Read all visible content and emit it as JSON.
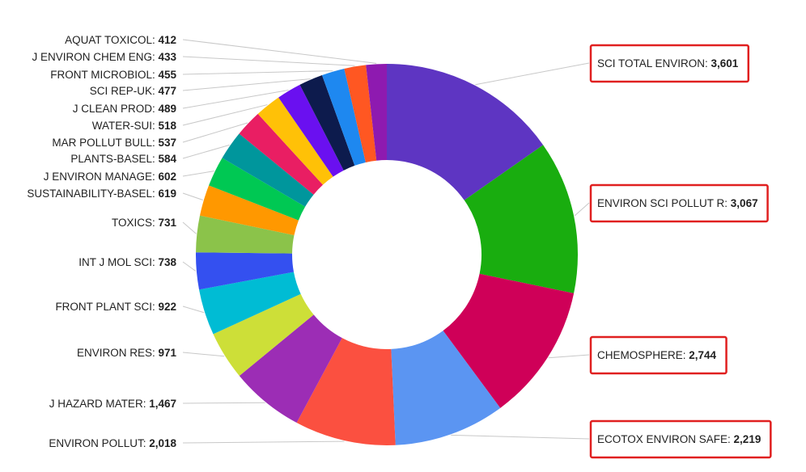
{
  "chart_data": {
    "type": "pie",
    "donut": true,
    "title": "",
    "slices": [
      {
        "label": "SCI TOTAL ENVIRON",
        "value": 3601,
        "display": "3,601",
        "color": "#5e35c2",
        "highlighted": true
      },
      {
        "label": "ENVIRON SCI POLLUT R",
        "value": 3067,
        "display": "3,067",
        "color": "#19ad0f",
        "highlighted": true
      },
      {
        "label": "CHEMOSPHERE",
        "value": 2744,
        "display": "2,744",
        "color": "#cf0058",
        "highlighted": true
      },
      {
        "label": "ECOTOX ENVIRON SAFE",
        "value": 2219,
        "display": "2,219",
        "color": "#5b95f2",
        "highlighted": true
      },
      {
        "label": "ENVIRON POLLUT",
        "value": 2018,
        "display": "2,018",
        "color": "#fb5040",
        "highlighted": false
      },
      {
        "label": "J HAZARD MATER",
        "value": 1467,
        "display": "1,467",
        "color": "#9c2db5",
        "highlighted": false
      },
      {
        "label": "ENVIRON RES",
        "value": 971,
        "display": "971",
        "color": "#cddf38",
        "highlighted": false
      },
      {
        "label": "FRONT PLANT SCI",
        "value": 922,
        "display": "922",
        "color": "#00bcd4",
        "highlighted": false
      },
      {
        "label": "INT J MOL SCI",
        "value": 738,
        "display": "738",
        "color": "#3450f0",
        "highlighted": false
      },
      {
        "label": "TOXICS",
        "value": 731,
        "display": "731",
        "color": "#8bc34a",
        "highlighted": false
      },
      {
        "label": "SUSTAINABILITY-BASEL",
        "value": 619,
        "display": "619",
        "color": "#ff9800",
        "highlighted": false
      },
      {
        "label": "J ENVIRON MANAGE",
        "value": 602,
        "display": "602",
        "color": "#00c853",
        "highlighted": false
      },
      {
        "label": "PLANTS-BASEL",
        "value": 584,
        "display": "584",
        "color": "#00969c",
        "highlighted": false
      },
      {
        "label": "MAR POLLUT BULL",
        "value": 537,
        "display": "537",
        "color": "#e91e63",
        "highlighted": false
      },
      {
        "label": "WATER-SUI",
        "value": 518,
        "display": "518",
        "color": "#ffc107",
        "highlighted": false
      },
      {
        "label": "J CLEAN PROD",
        "value": 489,
        "display": "489",
        "color": "#6a10f0",
        "highlighted": false
      },
      {
        "label": "SCI REP-UK",
        "value": 477,
        "display": "477",
        "color": "#0d1b4d",
        "highlighted": false
      },
      {
        "label": "FRONT MICROBIOL",
        "value": 455,
        "display": "455",
        "color": "#1e88f0",
        "highlighted": false
      },
      {
        "label": "J ENVIRON CHEM ENG",
        "value": 433,
        "display": "433",
        "color": "#ff5722",
        "highlighted": false
      },
      {
        "label": "AQUAT TOXICOL",
        "value": 412,
        "display": "412",
        "color": "#8e1ab0",
        "highlighted": false
      }
    ],
    "legend": "none",
    "label_separator": ": "
  }
}
